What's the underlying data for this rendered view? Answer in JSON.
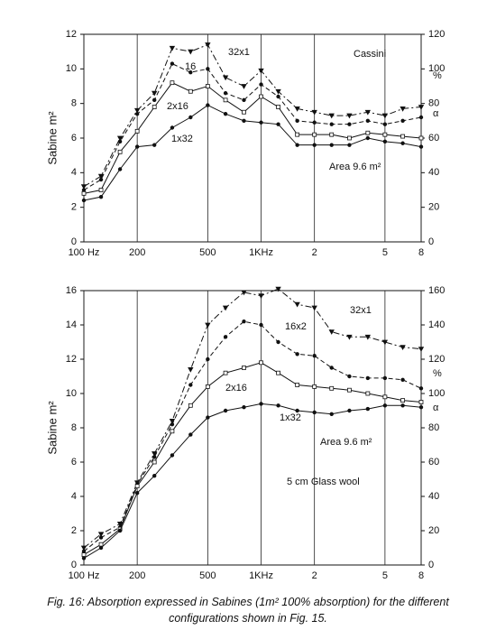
{
  "chart_data": [
    {
      "type": "line",
      "annotations": [
        "Cassini",
        "Area 9.6 m²"
      ],
      "y_label": "Sabine m²",
      "y2_unit": "%",
      "y2_symbol": "α",
      "x": [
        100,
        125,
        160,
        200,
        250,
        315,
        400,
        500,
        630,
        800,
        1000,
        1250,
        1600,
        2000,
        2500,
        3150,
        4000,
        5000,
        6300,
        8000
      ],
      "log_x": true,
      "xlim": [
        100,
        8000
      ],
      "xticks": [
        {
          "value": 100,
          "label": "100 Hz"
        },
        200,
        500,
        {
          "value": 1000,
          "label": "1KHz"
        },
        {
          "value": 2000,
          "label": "2"
        },
        {
          "value": 5000,
          "label": "5"
        },
        {
          "value": 8000,
          "label": "8"
        }
      ],
      "ylim": [
        0,
        12
      ],
      "yticks": [
        0,
        2,
        4,
        6,
        8,
        10,
        12
      ],
      "y2lim": [
        0,
        120
      ],
      "y2ticks": [
        0,
        20,
        40,
        60,
        80,
        100,
        120
      ],
      "grid": "x",
      "series": [
        {
          "name": "32x1",
          "color": "#111111",
          "dash": "7 3 2 3",
          "marker": "triangle",
          "values": [
            3.2,
            3.8,
            6.0,
            7.6,
            8.6,
            11.2,
            11.0,
            11.4,
            9.5,
            9.0,
            9.9,
            8.7,
            7.7,
            7.5,
            7.3,
            7.3,
            7.5,
            7.3,
            7.7,
            7.8
          ]
        },
        {
          "name": "16",
          "color": "#111111",
          "dash": "5 3",
          "marker": "circle",
          "values": [
            3.0,
            3.6,
            5.8,
            7.4,
            8.2,
            10.3,
            9.8,
            10.0,
            8.6,
            8.2,
            9.1,
            8.4,
            7.0,
            6.9,
            6.8,
            6.8,
            7.0,
            6.8,
            7.0,
            7.2
          ]
        },
        {
          "name": "2x16",
          "color": "#111111",
          "dash": "",
          "marker": "square",
          "values": [
            2.8,
            3.0,
            5.2,
            6.4,
            7.8,
            9.2,
            8.7,
            9.0,
            8.2,
            7.5,
            8.4,
            7.8,
            6.2,
            6.2,
            6.2,
            6.0,
            6.3,
            6.2,
            6.1,
            6.0
          ]
        },
        {
          "name": "1x32",
          "color": "#111111",
          "dash": "",
          "marker": "circle",
          "values": [
            2.4,
            2.6,
            4.2,
            5.5,
            5.6,
            6.6,
            7.2,
            7.9,
            7.4,
            7.0,
            6.9,
            6.8,
            5.6,
            5.6,
            5.6,
            5.6,
            6.0,
            5.8,
            5.7,
            5.5
          ]
        }
      ]
    },
    {
      "type": "line",
      "annotations": [
        "Area 9.6 m²",
        "5 cm Glass wool"
      ],
      "y_label": "Sabine m²",
      "y2_unit": "%",
      "y2_symbol": "α",
      "x": [
        100,
        125,
        160,
        200,
        250,
        315,
        400,
        500,
        630,
        800,
        1000,
        1250,
        1600,
        2000,
        2500,
        3150,
        4000,
        5000,
        6300,
        8000
      ],
      "log_x": true,
      "xlim": [
        100,
        8000
      ],
      "xticks": [
        {
          "value": 100,
          "label": "100 Hz"
        },
        200,
        500,
        {
          "value": 1000,
          "label": "1KHz"
        },
        {
          "value": 2000,
          "label": "2"
        },
        {
          "value": 5000,
          "label": "5"
        },
        {
          "value": 8000,
          "label": "8"
        }
      ],
      "ylim": [
        0,
        16
      ],
      "yticks": [
        0,
        2,
        4,
        6,
        8,
        10,
        12,
        14,
        16
      ],
      "y2lim": [
        0,
        160
      ],
      "y2ticks": [
        0,
        20,
        40,
        60,
        80,
        100,
        120,
        140,
        160
      ],
      "grid": "x",
      "series": [
        {
          "name": "32x1",
          "color": "#111111",
          "dash": "7 3 2 3",
          "marker": "triangle",
          "values": [
            1.0,
            1.8,
            2.4,
            4.8,
            6.5,
            8.4,
            11.4,
            14.0,
            15.0,
            15.9,
            15.7,
            16.1,
            15.2,
            15.0,
            13.6,
            13.3,
            13.3,
            13.0,
            12.7,
            12.6
          ]
        },
        {
          "name": "16x2",
          "color": "#111111",
          "dash": "5 3",
          "marker": "circle",
          "values": [
            0.8,
            1.6,
            2.2,
            4.7,
            6.3,
            8.2,
            10.5,
            12.0,
            13.3,
            14.2,
            14.0,
            13.0,
            12.3,
            12.2,
            11.5,
            11.0,
            10.9,
            10.9,
            10.8,
            10.3
          ]
        },
        {
          "name": "2x16",
          "color": "#111111",
          "dash": "",
          "marker": "square",
          "values": [
            0.6,
            1.2,
            2.1,
            4.6,
            6.0,
            7.8,
            9.3,
            10.4,
            11.2,
            11.5,
            11.8,
            11.2,
            10.5,
            10.4,
            10.3,
            10.2,
            10.0,
            9.8,
            9.6,
            9.5
          ]
        },
        {
          "name": "1x32",
          "color": "#111111",
          "dash": "",
          "marker": "circle",
          "values": [
            0.4,
            1.0,
            2.0,
            4.2,
            5.2,
            6.4,
            7.6,
            8.6,
            9.0,
            9.2,
            9.4,
            9.3,
            9.0,
            8.9,
            8.8,
            9.0,
            9.1,
            9.3,
            9.3,
            9.2
          ]
        }
      ]
    }
  ],
  "caption": [
    "Fig. 16: Absorption expressed in Sabines (1m² 100% absorption) for the different",
    "configurations shown in Fig. 15."
  ]
}
